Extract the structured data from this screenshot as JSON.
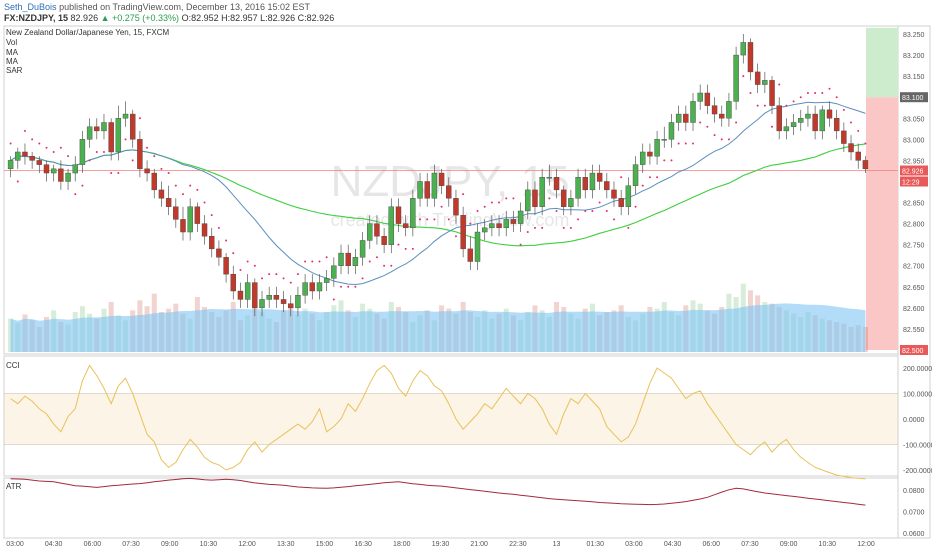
{
  "header": {
    "author": "Seth_DuBois",
    "published": "published on TradingView.com, December 13, 2016 15:02 EST",
    "symbol": "FX:NZDJPY, 15",
    "last": "82.926",
    "change": "▲ +0.275 (+0.33%)",
    "ohlc": "O:82.952 H:82.957 L:82.926 C:82.926"
  },
  "legend": {
    "title": "New Zealand Dollar/Japanese Yen, 15, FXCM",
    "items": [
      "Vol",
      "MA",
      "MA",
      "SAR"
    ]
  },
  "watermark": {
    "symbol": "NZDJPY, 15",
    "tagline": "created with TradingView.com"
  },
  "colors": {
    "up": "#4caf50",
    "down": "#c0392b",
    "ma_fast": "#5b8fbf",
    "ma_slow": "#3ecf3e",
    "sar": "#e0306e",
    "volume": "#7ec4f2",
    "cci": "#e8c25a",
    "atr": "#a52a3a"
  },
  "price_axis": {
    "ticks": [
      "83.250",
      "83.200",
      "83.150",
      "83.100",
      "83.050",
      "83.000",
      "82.950",
      "82.900",
      "82.850",
      "82.800",
      "82.750",
      "82.700",
      "82.650",
      "82.600",
      "82.550",
      "82.500"
    ],
    "current_price_label": "82.926",
    "countdown_label": "12:29",
    "target_top_label": "83.100",
    "target_bottom_label": "82.500"
  },
  "cci_panel": {
    "label": "CCI",
    "ticks": [
      "200.0000",
      "100.0000",
      "0.0000",
      "-100.0000",
      "-200.0000"
    ]
  },
  "atr_panel": {
    "label": "ATR",
    "ticks": [
      "0.0800",
      "0.0700",
      "0.0600"
    ]
  },
  "time_axis": {
    "labels": [
      "03:00",
      "04:30",
      "06:00",
      "07:30",
      "09:00",
      "10:30",
      "12:00",
      "13:30",
      "15:00",
      "16:30",
      "18:00",
      "19:30",
      "21:00",
      "22:30",
      "13",
      "01:30",
      "03:00",
      "04:30",
      "06:00",
      "07:30",
      "09:00",
      "10:30",
      "12:00"
    ]
  },
  "chart_data": {
    "type": "candlestick",
    "title": "New Zealand Dollar/Japanese Yen, 15, FXCM",
    "ylim": [
      82.5,
      83.26
    ],
    "open": [
      82.93,
      82.95,
      82.97,
      82.96,
      82.95,
      82.94,
      82.92,
      82.93,
      82.9,
      82.92,
      82.94,
      83.0,
      83.03,
      83.02,
      83.04,
      82.97,
      83.05,
      83.06,
      83.0,
      82.93,
      82.92,
      82.88,
      82.86,
      82.84,
      82.81,
      82.78,
      82.84,
      82.8,
      82.77,
      82.74,
      82.72,
      82.68,
      82.64,
      82.62,
      82.66,
      82.6,
      82.62,
      82.63,
      82.62,
      82.61,
      82.6,
      82.63,
      82.66,
      82.64,
      82.66,
      82.67,
      82.7,
      82.73,
      82.7,
      82.72,
      82.76,
      82.8,
      82.77,
      82.75,
      82.84,
      82.8,
      82.79,
      82.86,
      82.9,
      82.86,
      82.92,
      82.89,
      82.86,
      82.82,
      82.74,
      82.71,
      82.78,
      82.79,
      82.8,
      82.79,
      82.81,
      82.8,
      82.83,
      82.88,
      82.84,
      82.91,
      82.91,
      82.88,
      82.84,
      82.86,
      82.91,
      82.88,
      82.92,
      82.9,
      82.88,
      82.86,
      82.84,
      82.89,
      82.94,
      82.97,
      82.96,
      83.0,
      83.0,
      83.04,
      83.06,
      83.04,
      83.09,
      83.11,
      83.08,
      83.06,
      83.05,
      83.09,
      83.2,
      83.23,
      83.16,
      83.13,
      83.14,
      83.08,
      83.02,
      83.03,
      83.04,
      83.05,
      83.06,
      83.02,
      83.07,
      83.05,
      83.02,
      82.99,
      82.97,
      82.95
    ],
    "close": [
      82.95,
      82.97,
      82.96,
      82.95,
      82.94,
      82.92,
      82.93,
      82.9,
      82.92,
      82.94,
      83.0,
      83.03,
      83.02,
      83.04,
      82.97,
      83.05,
      83.06,
      83.0,
      82.93,
      82.92,
      82.88,
      82.86,
      82.84,
      82.81,
      82.78,
      82.84,
      82.8,
      82.77,
      82.74,
      82.72,
      82.68,
      82.64,
      82.62,
      82.66,
      82.6,
      82.62,
      82.63,
      82.62,
      82.61,
      82.6,
      82.63,
      82.66,
      82.64,
      82.66,
      82.67,
      82.7,
      82.73,
      82.7,
      82.72,
      82.76,
      82.8,
      82.77,
      82.75,
      82.84,
      82.8,
      82.79,
      82.86,
      82.9,
      82.86,
      82.92,
      82.89,
      82.86,
      82.82,
      82.74,
      82.71,
      82.78,
      82.79,
      82.8,
      82.79,
      82.81,
      82.8,
      82.83,
      82.88,
      82.84,
      82.91,
      82.91,
      82.88,
      82.84,
      82.86,
      82.91,
      82.88,
      82.92,
      82.9,
      82.88,
      82.86,
      82.84,
      82.89,
      82.94,
      82.97,
      82.96,
      83.0,
      83.0,
      83.04,
      83.06,
      83.04,
      83.09,
      83.11,
      83.08,
      83.06,
      83.05,
      83.09,
      83.2,
      83.23,
      83.16,
      83.13,
      83.14,
      83.08,
      83.02,
      83.03,
      83.04,
      83.05,
      83.06,
      83.02,
      83.07,
      83.05,
      83.02,
      82.99,
      82.97,
      82.95,
      82.93
    ],
    "high": [
      82.96,
      82.98,
      82.99,
      82.97,
      82.96,
      82.95,
      82.94,
      82.95,
      82.93,
      82.96,
      83.02,
      83.05,
      83.05,
      83.06,
      83.05,
      83.08,
      83.09,
      83.07,
      83.02,
      82.95,
      82.93,
      82.9,
      82.89,
      82.86,
      82.84,
      82.86,
      82.85,
      82.82,
      82.79,
      82.76,
      82.73,
      82.7,
      82.66,
      82.68,
      82.67,
      82.64,
      82.65,
      82.65,
      82.64,
      82.63,
      82.65,
      82.68,
      82.68,
      82.68,
      82.69,
      82.72,
      82.75,
      82.75,
      82.74,
      82.78,
      82.82,
      82.82,
      82.79,
      82.86,
      82.86,
      82.82,
      82.88,
      82.92,
      82.92,
      82.94,
      82.93,
      82.91,
      82.88,
      82.84,
      82.77,
      82.8,
      82.81,
      82.82,
      82.82,
      82.83,
      82.83,
      82.85,
      82.9,
      82.9,
      82.93,
      82.94,
      82.93,
      82.89,
      82.88,
      82.93,
      82.93,
      82.94,
      82.94,
      82.92,
      82.9,
      82.88,
      82.91,
      82.96,
      82.99,
      82.99,
      83.02,
      83.03,
      83.06,
      83.08,
      83.08,
      83.11,
      83.13,
      83.13,
      83.1,
      83.08,
      83.11,
      83.22,
      83.25,
      83.24,
      83.18,
      83.16,
      83.15,
      83.1,
      83.05,
      83.06,
      83.07,
      83.08,
      83.08,
      83.08,
      83.09,
      83.07,
      83.04,
      83.01,
      82.99,
      82.96
    ],
    "low": [
      82.91,
      82.93,
      82.94,
      82.93,
      82.92,
      82.9,
      82.9,
      82.88,
      82.88,
      82.9,
      82.92,
      82.98,
      83.0,
      83.0,
      82.95,
      82.95,
      83.03,
      82.98,
      82.91,
      82.9,
      82.86,
      82.84,
      82.82,
      82.79,
      82.76,
      82.76,
      82.78,
      82.75,
      82.72,
      82.7,
      82.66,
      82.62,
      82.6,
      82.6,
      82.58,
      82.58,
      82.6,
      82.6,
      82.59,
      82.58,
      82.58,
      82.61,
      82.62,
      82.62,
      82.64,
      82.65,
      82.68,
      82.68,
      82.68,
      82.7,
      82.74,
      82.75,
      82.73,
      82.73,
      82.78,
      82.77,
      82.77,
      82.84,
      82.84,
      82.84,
      82.87,
      82.84,
      82.8,
      82.72,
      82.69,
      82.69,
      82.76,
      82.77,
      82.77,
      82.77,
      82.78,
      82.78,
      82.81,
      82.82,
      82.82,
      82.89,
      82.86,
      82.82,
      82.82,
      82.84,
      82.86,
      82.86,
      82.88,
      82.86,
      82.84,
      82.82,
      82.82,
      82.87,
      82.92,
      82.94,
      82.94,
      82.98,
      82.98,
      83.02,
      83.02,
      83.02,
      83.07,
      83.06,
      83.04,
      83.03,
      83.03,
      83.07,
      83.18,
      83.14,
      83.11,
      83.11,
      83.06,
      83.0,
      83.0,
      83.01,
      83.02,
      83.03,
      83.0,
      83.0,
      83.03,
      83.0,
      82.97,
      82.95,
      82.93,
      82.92
    ],
    "volume": [
      40,
      35,
      45,
      38,
      30,
      42,
      50,
      36,
      33,
      48,
      55,
      46,
      40,
      52,
      60,
      44,
      38,
      50,
      62,
      55,
      70,
      48,
      52,
      58,
      46,
      40,
      66,
      54,
      48,
      42,
      50,
      60,
      38,
      44,
      56,
      48,
      40,
      36,
      50,
      58,
      44,
      52,
      46,
      38,
      48,
      56,
      62,
      50,
      42,
      58,
      52,
      46,
      40,
      60,
      54,
      48,
      36,
      44,
      50,
      38,
      56,
      52,
      46,
      60,
      48,
      42,
      50,
      40,
      46,
      52,
      44,
      38,
      48,
      56,
      50,
      42,
      60,
      54,
      46,
      40,
      52,
      58,
      44,
      48,
      50,
      56,
      42,
      38,
      46,
      54,
      52,
      60,
      48,
      44,
      56,
      62,
      58,
      50,
      46,
      54,
      70,
      66,
      82,
      74,
      68,
      60,
      58,
      54,
      50,
      46,
      42,
      48,
      44,
      40,
      38,
      36,
      34,
      30,
      32,
      30
    ],
    "cci": [
      80,
      60,
      90,
      70,
      40,
      20,
      -20,
      -50,
      10,
      40,
      150,
      210,
      170,
      120,
      60,
      130,
      160,
      100,
      20,
      -60,
      -90,
      -160,
      -190,
      -170,
      -120,
      -80,
      -110,
      -150,
      -170,
      -180,
      -200,
      -190,
      -170,
      -120,
      -90,
      -130,
      -100,
      -80,
      -60,
      -40,
      -20,
      -40,
      -10,
      40,
      -50,
      -30,
      0,
      60,
      30,
      80,
      140,
      190,
      210,
      180,
      120,
      90,
      150,
      190,
      170,
      130,
      110,
      60,
      0,
      -40,
      -10,
      20,
      60,
      40,
      80,
      120,
      90,
      60,
      100,
      80,
      40,
      -20,
      -60,
      20,
      80,
      60,
      100,
      70,
      40,
      -30,
      -60,
      -90,
      -70,
      -20,
      60,
      140,
      200,
      180,
      160,
      120,
      80,
      100,
      110,
      60,
      20,
      -20,
      -60,
      -100,
      -120,
      -140,
      -110,
      -90,
      -130,
      -100,
      -80,
      -120,
      -150,
      -170,
      -190,
      -200,
      -210,
      -220,
      -225,
      -230,
      -232,
      -235
    ],
    "atr": [
      0.0852,
      0.0851,
      0.085,
      0.0846,
      0.0842,
      0.084,
      0.0838,
      0.0832,
      0.0826,
      0.082,
      0.0818,
      0.0815,
      0.0812,
      0.0816,
      0.082,
      0.0822,
      0.0825,
      0.0828,
      0.083,
      0.0834,
      0.0838,
      0.0842,
      0.0846,
      0.0849,
      0.0852,
      0.0854,
      0.0851,
      0.0848,
      0.0846,
      0.0848,
      0.085,
      0.0848,
      0.0844,
      0.0838,
      0.0833,
      0.083,
      0.0826,
      0.0824,
      0.0822,
      0.0818,
      0.0814,
      0.0812,
      0.081,
      0.0809,
      0.0808,
      0.081,
      0.0813,
      0.0816,
      0.082,
      0.0823,
      0.0826,
      0.083,
      0.0834,
      0.0836,
      0.0838,
      0.0834,
      0.0829,
      0.0826,
      0.0822,
      0.082,
      0.0818,
      0.0814,
      0.081,
      0.0806,
      0.0802,
      0.0798,
      0.0794,
      0.079,
      0.0786,
      0.0783,
      0.078,
      0.0776,
      0.0772,
      0.0768,
      0.0764,
      0.076,
      0.0757,
      0.0755,
      0.0752,
      0.075,
      0.0748,
      0.0745,
      0.0742,
      0.074,
      0.0738,
      0.0736,
      0.0735,
      0.0734,
      0.0733,
      0.0732,
      0.0733,
      0.0735,
      0.0738,
      0.0742,
      0.0746,
      0.0752,
      0.0758,
      0.0766,
      0.0778,
      0.079,
      0.0801,
      0.0808,
      0.0805,
      0.0798,
      0.0792,
      0.0786,
      0.0782,
      0.0778,
      0.0774,
      0.077,
      0.0766,
      0.0762,
      0.0758,
      0.0754,
      0.075,
      0.0746,
      0.0742,
      0.0738,
      0.0734,
      0.073
    ]
  }
}
